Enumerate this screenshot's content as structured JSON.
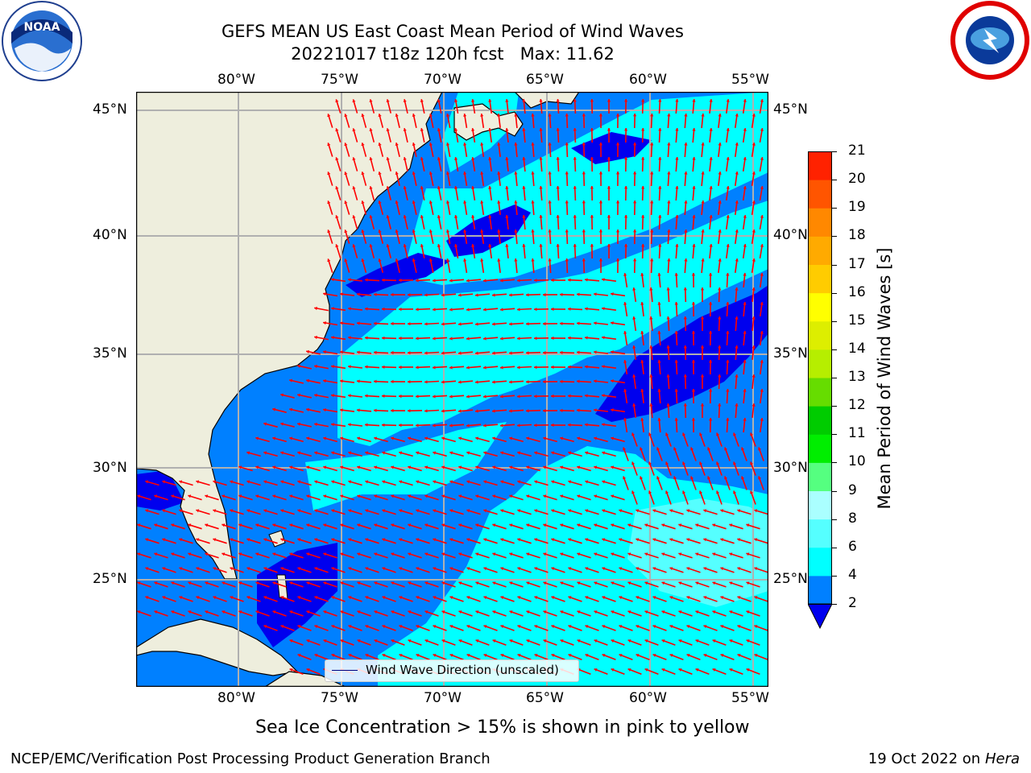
{
  "header": {
    "title_line1": "GEFS MEAN US East Coast Mean Period of Wind Waves",
    "title_line2": "20221017 t18z 120h fcst   Max: 11.62"
  },
  "logos": {
    "noaa": {
      "icon": "noaa-logo-icon",
      "text": "NOAA",
      "ring_text": "NATIONAL OCEANIC AND ATMOSPHERIC ADMINISTRATION",
      "bottom_text": "U.S. DEPARTMENT OF COMMERCE"
    },
    "nws": {
      "icon": "nws-logo-icon",
      "ring_text": "NATIONAL WEATHER SERVICE"
    }
  },
  "map": {
    "lon_labels": [
      "80°W",
      "75°W",
      "70°W",
      "65°W",
      "60°W",
      "55°W"
    ],
    "lat_labels": [
      "45°N",
      "40°N",
      "35°N",
      "30°N",
      "25°N"
    ],
    "legend_label": "Wind Wave Direction (unscaled)",
    "colors": {
      "land": "#eeeedd",
      "level_2_4": "#0080ff",
      "level_lt2": "#0000ee",
      "level_4_6": "#00ffff",
      "level_6_8": "#55ffff",
      "grid": "#b0b0b0",
      "arrow": "#ff0000"
    }
  },
  "colorbar": {
    "title": "Mean Period of Wind Waves [s]",
    "ticks": [
      "2",
      "4",
      "6",
      "8",
      "9",
      "10",
      "11",
      "12",
      "13",
      "14",
      "15",
      "16",
      "17",
      "18",
      "19",
      "20",
      "21"
    ],
    "colors": [
      "#0080ff",
      "#00ffff",
      "#55ffff",
      "#aaffff",
      "#55ff80",
      "#00ee00",
      "#00cc00",
      "#66dd00",
      "#b6ee00",
      "#ddee00",
      "#ffff00",
      "#ffcc00",
      "#ffaa00",
      "#ff8800",
      "#ff5500",
      "#ff2200"
    ],
    "underflow_color": "#0000ee"
  },
  "notes": {
    "sea_ice": "Sea Ice Concentration > 15% is shown in pink to yellow"
  },
  "footer": {
    "left": "NCEP/EMC/Verification Post Processing Product Generation Branch",
    "right_prefix": "19 Oct 2022 on ",
    "right_emph": "Hera"
  }
}
